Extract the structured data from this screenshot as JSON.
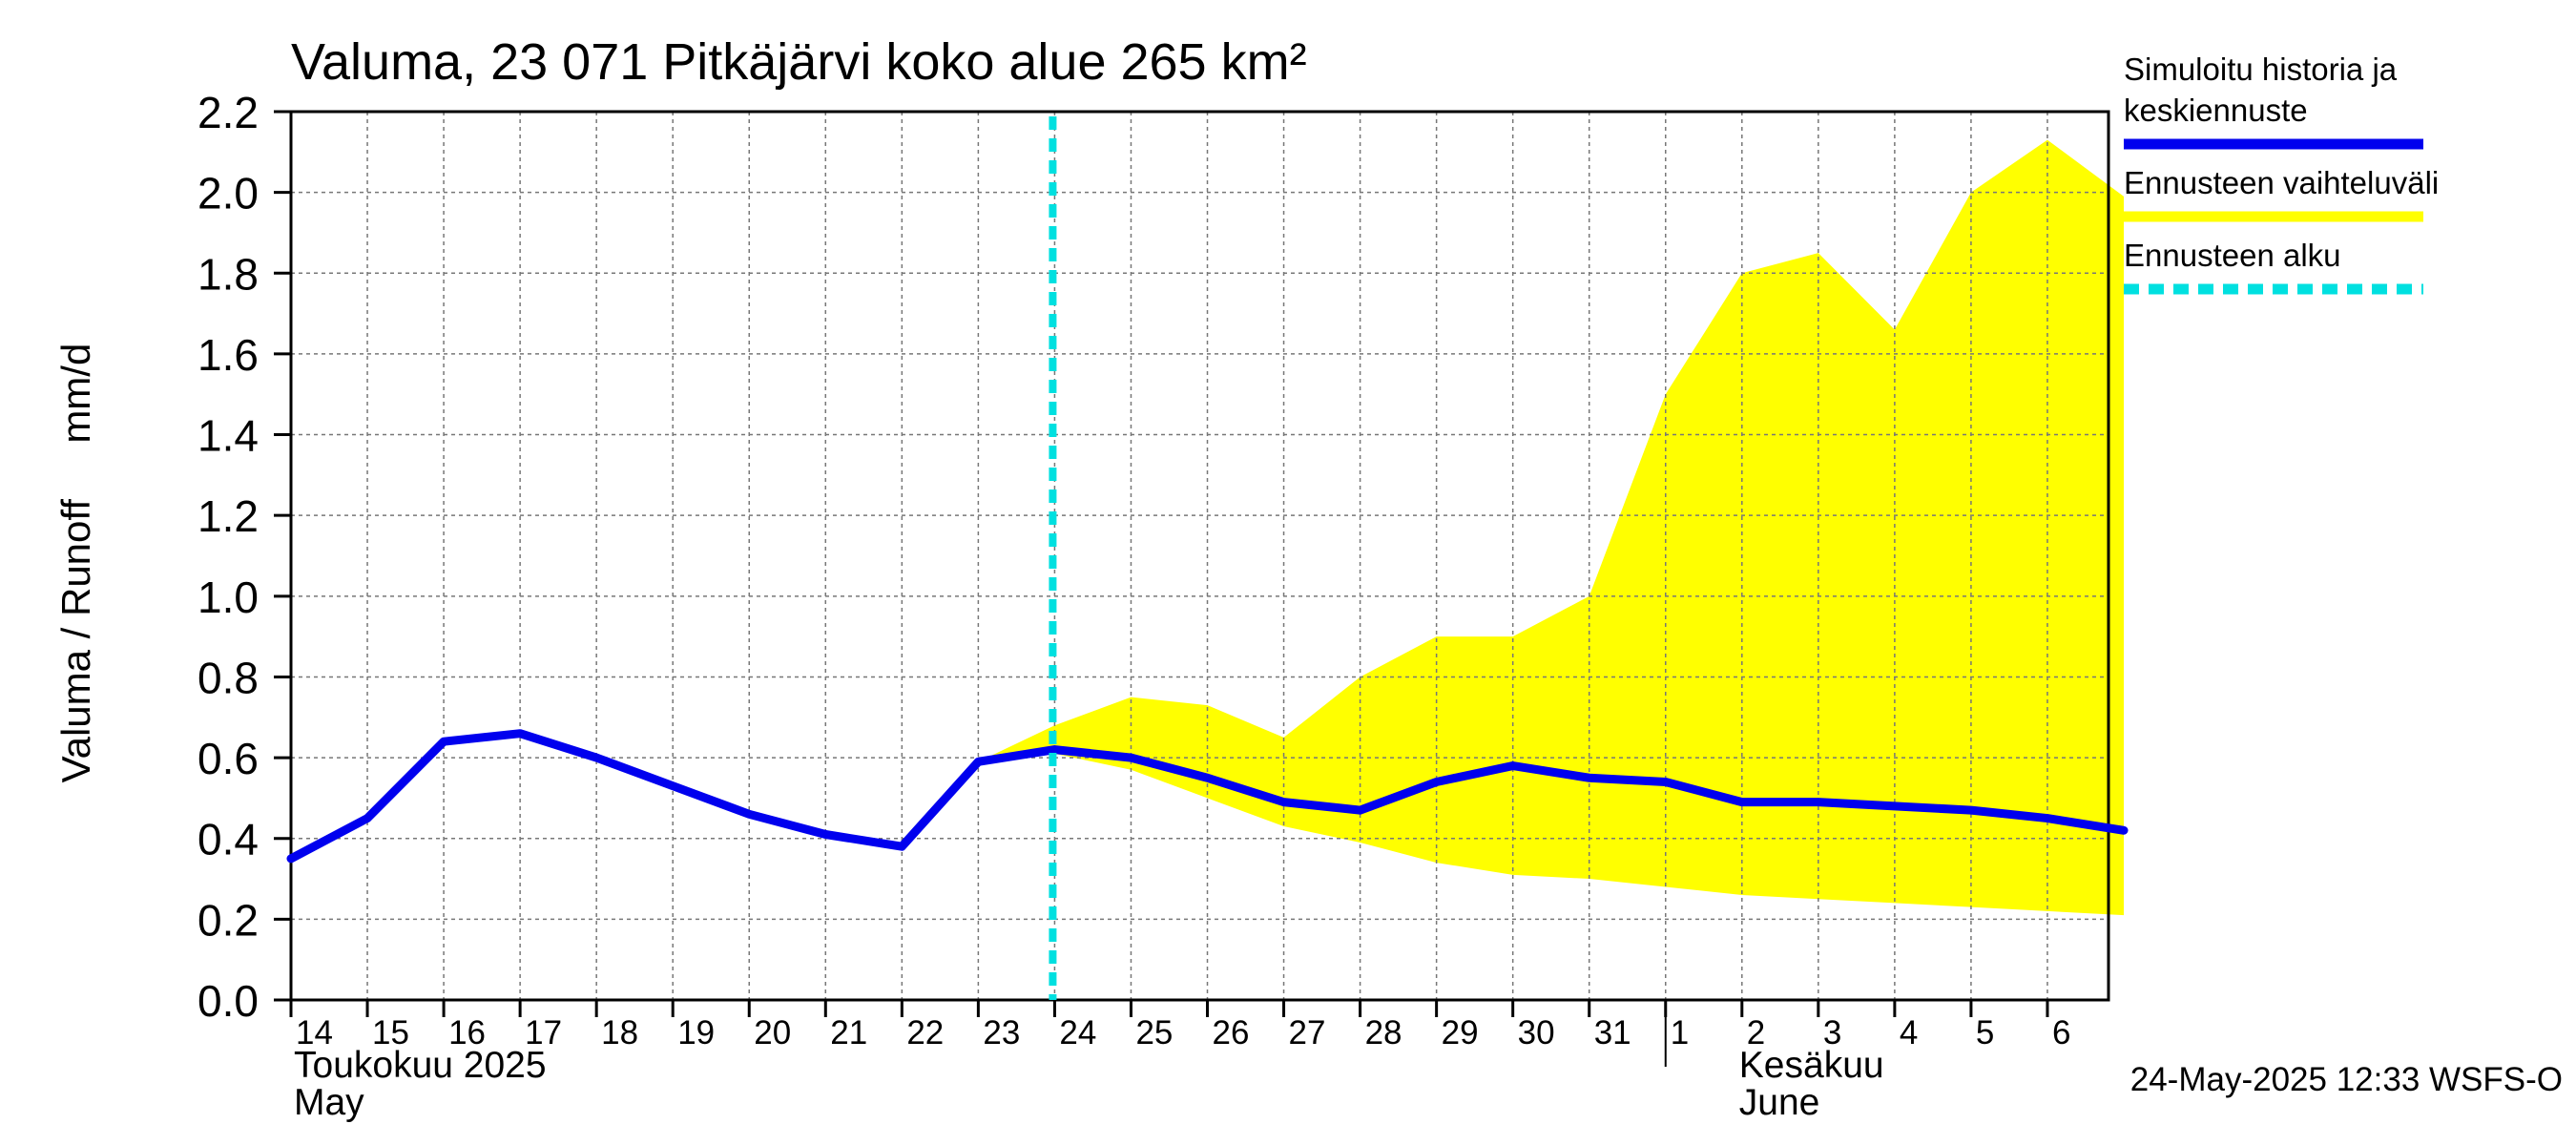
{
  "chart_data": {
    "type": "line",
    "title": "Valuma, 23 071 Pitkäjärvi koko alue 265 km²",
    "ylabel": "Valuma / Runoff     mm/d",
    "ylim": [
      0,
      2.2
    ],
    "yticks": [
      "0.0",
      "0.2",
      "0.4",
      "0.6",
      "0.8",
      "1.0",
      "1.2",
      "1.4",
      "1.6",
      "1.8",
      "2.0",
      "2.2"
    ],
    "x_tick_labels": [
      "14",
      "15",
      "16",
      "17",
      "18",
      "19",
      "20",
      "21",
      "22",
      "23",
      "24",
      "25",
      "26",
      "27",
      "28",
      "29",
      "30",
      "31",
      "1",
      "2",
      "3",
      "4",
      "5",
      "6"
    ],
    "month_labels": [
      {
        "fi": "Toukokuu  2025",
        "en": "May",
        "day_index": 0
      },
      {
        "fi": "Kesäkuu",
        "en": "June",
        "day_index": 19
      }
    ],
    "grid": true,
    "forecast_start_day_index": 10,
    "series": [
      {
        "name": "Simuloitu historia ja keskiennuste",
        "color": "#0000ee",
        "x": [
          0,
          1,
          2,
          3,
          4,
          5,
          6,
          7,
          8,
          9,
          10,
          11,
          12,
          13,
          14,
          15,
          16,
          17,
          18,
          19,
          20,
          21,
          22,
          23,
          24
        ],
        "values": [
          0.35,
          0.45,
          0.64,
          0.66,
          0.6,
          0.53,
          0.46,
          0.41,
          0.38,
          0.59,
          0.62,
          0.6,
          0.55,
          0.49,
          0.47,
          0.54,
          0.58,
          0.55,
          0.54,
          0.49,
          0.49,
          0.48,
          0.47,
          0.45,
          0.42
        ]
      }
    ],
    "band": {
      "name": "Ennusteen vaihteluväli",
      "color": "#ffff00",
      "x": [
        9,
        10,
        11,
        12,
        13,
        14,
        15,
        16,
        17,
        18,
        19,
        20,
        21,
        22,
        23,
        24
      ],
      "upper": [
        0.59,
        0.68,
        0.75,
        0.73,
        0.65,
        0.8,
        0.9,
        0.9,
        1.0,
        1.5,
        1.8,
        1.85,
        1.66,
        2.0,
        2.13,
        1.99
      ],
      "lower": [
        0.59,
        0.61,
        0.57,
        0.5,
        0.43,
        0.39,
        0.34,
        0.31,
        0.3,
        0.28,
        0.26,
        0.25,
        0.24,
        0.23,
        0.22,
        0.21
      ]
    },
    "legend": {
      "placement": "right",
      "items": [
        {
          "label_lines": [
            "Simuloitu historia ja",
            "keskiennuste"
          ],
          "color": "#0000ee",
          "style": "solid"
        },
        {
          "label_lines": [
            "Ennusteen vaihteluväli"
          ],
          "color": "#ffff00",
          "style": "solid"
        },
        {
          "label_lines": [
            "Ennusteen alku"
          ],
          "color": "#00e0e0",
          "style": "dashed"
        }
      ]
    },
    "footer": "24-May-2025 12:33 WSFS-O"
  }
}
